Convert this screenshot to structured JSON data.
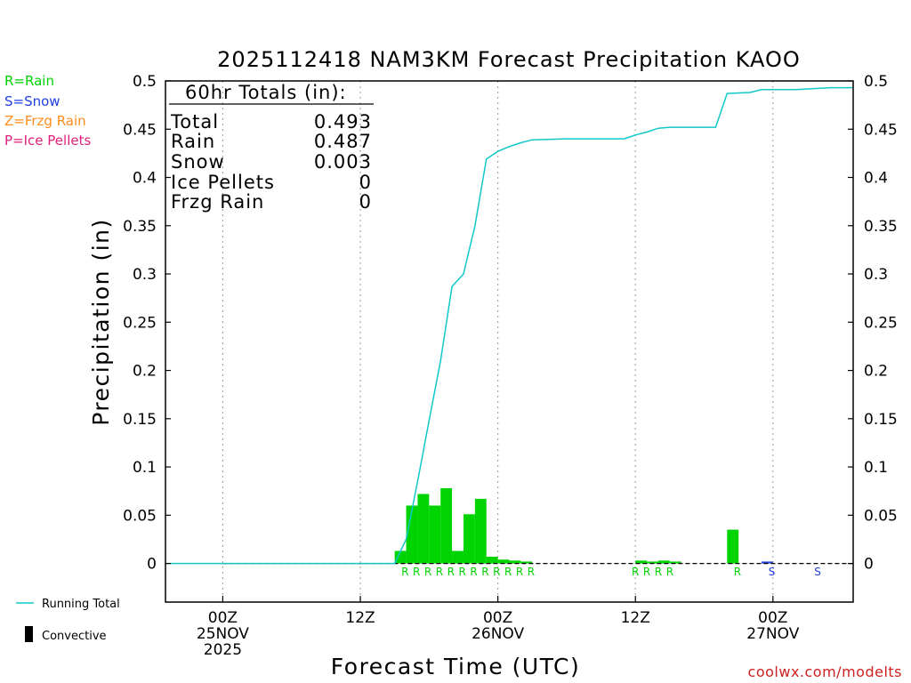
{
  "colors": {
    "rain": "#00d400",
    "snow": "#2040e0",
    "frzg_rain": "#ff8c1a",
    "ice_pellets": "#e0207a",
    "running_total": "#10c8c8",
    "credit": "#d02020"
  },
  "ptype_legend": [
    {
      "label": "R=Rain",
      "color_key": "rain"
    },
    {
      "label": "S=Snow",
      "color_key": "snow"
    },
    {
      "label": "Z=Frzg Rain",
      "color_key": "frzg_rain"
    },
    {
      "label": "P=Ice Pellets",
      "color_key": "ice_pellets"
    }
  ],
  "totals_box": {
    "heading": "60hr Totals (in):",
    "rows": [
      {
        "label": "Total",
        "value": "0.493"
      },
      {
        "label": "Rain",
        "value": "0.487"
      },
      {
        "label": "Snow",
        "value": "0.003"
      },
      {
        "label": "Ice Pellets",
        "value": "0"
      },
      {
        "label": "Frzg Rain",
        "value": "0"
      }
    ]
  },
  "bottom_legend": {
    "running_total": "Running Total",
    "convective": "Convective"
  },
  "credit": "coolwx.com/modelts",
  "chart_data": {
    "type": "bar",
    "title": "2025112418 NAM3KM Forecast Precipitation KAOO",
    "xlabel": "Forecast Time (UTC)",
    "ylabel": "Precipitation (in)",
    "ylim": [
      -0.04,
      0.5
    ],
    "xlim_hours": [
      -5,
      55
    ],
    "y_ticks": [
      "0",
      "0.05",
      "0.1",
      "0.15",
      "0.2",
      "0.25",
      "0.3",
      "0.35",
      "0.4",
      "0.45",
      "0.5"
    ],
    "y_tick_values": [
      0,
      0.05,
      0.1,
      0.15,
      0.2,
      0.25,
      0.3,
      0.35,
      0.4,
      0.45,
      0.5
    ],
    "x_ticks": [
      {
        "hour": 0,
        "lines": [
          "00Z",
          "25NOV",
          "2025"
        ]
      },
      {
        "hour": 12,
        "lines": [
          "12Z"
        ]
      },
      {
        "hour": 24,
        "lines": [
          "00Z",
          "26NOV"
        ]
      },
      {
        "hour": 36,
        "lines": [
          "12Z"
        ]
      },
      {
        "hour": 48,
        "lines": [
          "00Z",
          "27NOV"
        ]
      }
    ],
    "bar_series": {
      "name": "Hourly Precipitation",
      "bars": [
        {
          "hour": 16,
          "value": 0.013,
          "type": "rain"
        },
        {
          "hour": 17,
          "value": 0.06,
          "type": "rain"
        },
        {
          "hour": 18,
          "value": 0.072,
          "type": "rain"
        },
        {
          "hour": 19,
          "value": 0.06,
          "type": "rain"
        },
        {
          "hour": 20,
          "value": 0.078,
          "type": "rain"
        },
        {
          "hour": 21,
          "value": 0.013,
          "type": "rain"
        },
        {
          "hour": 22,
          "value": 0.051,
          "type": "rain"
        },
        {
          "hour": 23,
          "value": 0.067,
          "type": "rain"
        },
        {
          "hour": 24,
          "value": 0.007,
          "type": "rain"
        },
        {
          "hour": 25,
          "value": 0.004,
          "type": "rain"
        },
        {
          "hour": 26,
          "value": 0.003,
          "type": "rain"
        },
        {
          "hour": 27,
          "value": 0.002,
          "type": "rain"
        },
        {
          "hour": 37,
          "value": 0.003,
          "type": "rain"
        },
        {
          "hour": 38,
          "value": 0.002,
          "type": "rain"
        },
        {
          "hour": 39,
          "value": 0.003,
          "type": "rain"
        },
        {
          "hour": 40,
          "value": 0.002,
          "type": "rain"
        },
        {
          "hour": 45,
          "value": 0.035,
          "type": "rain"
        },
        {
          "hour": 48,
          "value": 0.002,
          "type": "snow"
        }
      ]
    },
    "ptype_markers": [
      {
        "hour": 15.9,
        "letter": "R",
        "type": "rain"
      },
      {
        "hour": 16.9,
        "letter": "R",
        "type": "rain"
      },
      {
        "hour": 17.9,
        "letter": "R",
        "type": "rain"
      },
      {
        "hour": 18.9,
        "letter": "R",
        "type": "rain"
      },
      {
        "hour": 19.9,
        "letter": "R",
        "type": "rain"
      },
      {
        "hour": 20.9,
        "letter": "R",
        "type": "rain"
      },
      {
        "hour": 21.9,
        "letter": "R",
        "type": "rain"
      },
      {
        "hour": 22.9,
        "letter": "R",
        "type": "rain"
      },
      {
        "hour": 23.9,
        "letter": "R",
        "type": "rain"
      },
      {
        "hour": 24.9,
        "letter": "R",
        "type": "rain"
      },
      {
        "hour": 25.9,
        "letter": "R",
        "type": "rain"
      },
      {
        "hour": 26.9,
        "letter": "R",
        "type": "rain"
      },
      {
        "hour": 36.0,
        "letter": "R",
        "type": "rain"
      },
      {
        "hour": 37.0,
        "letter": "R",
        "type": "rain"
      },
      {
        "hour": 38.0,
        "letter": "R",
        "type": "rain"
      },
      {
        "hour": 39.0,
        "letter": "R",
        "type": "rain"
      },
      {
        "hour": 44.9,
        "letter": "R",
        "type": "rain"
      },
      {
        "hour": 47.9,
        "letter": "S",
        "type": "snow"
      },
      {
        "hour": 51.9,
        "letter": "S",
        "type": "snow"
      }
    ],
    "line_series": {
      "name": "Running Total",
      "points": [
        [
          -5,
          0
        ],
        [
          15,
          0
        ],
        [
          16,
          0.025
        ],
        [
          17,
          0.085
        ],
        [
          18,
          0.148
        ],
        [
          19,
          0.21
        ],
        [
          20,
          0.287
        ],
        [
          21,
          0.3
        ],
        [
          22,
          0.35
        ],
        [
          23,
          0.419
        ],
        [
          24,
          0.427
        ],
        [
          25,
          0.432
        ],
        [
          26,
          0.436
        ],
        [
          27,
          0.439
        ],
        [
          30,
          0.44
        ],
        [
          35,
          0.44
        ],
        [
          36,
          0.444
        ],
        [
          37,
          0.447
        ],
        [
          38,
          0.451
        ],
        [
          39,
          0.452
        ],
        [
          43,
          0.452
        ],
        [
          44,
          0.487
        ],
        [
          46,
          0.488
        ],
        [
          47,
          0.491
        ],
        [
          50,
          0.491
        ],
        [
          53,
          0.493
        ],
        [
          55,
          0.493
        ]
      ]
    }
  }
}
